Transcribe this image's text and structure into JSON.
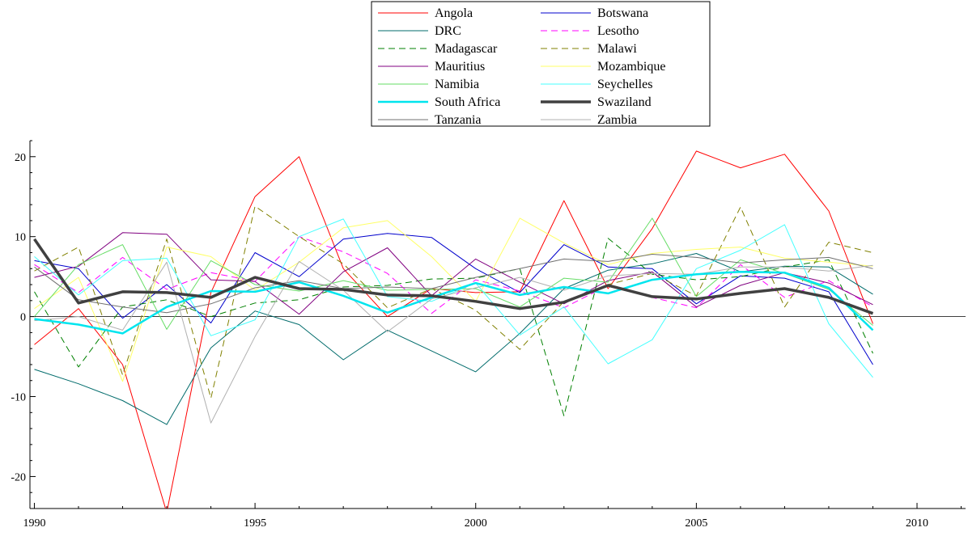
{
  "chart_data": {
    "type": "line",
    "x": [
      1990,
      1991,
      1992,
      1993,
      1994,
      1995,
      1996,
      1997,
      1998,
      1999,
      2000,
      2001,
      2002,
      2003,
      2004,
      2005,
      2006,
      2007,
      2008,
      2009
    ],
    "xlim": [
      1989.9,
      2011.1
    ],
    "ylim": [
      -24,
      22
    ],
    "xticks": [
      1990,
      1995,
      2000,
      2005,
      2010
    ],
    "yticks": [
      -20,
      -10,
      0,
      10,
      20
    ],
    "zero_line": true,
    "grid": false,
    "legend_position": "top-center",
    "legend_columns": 2,
    "series": [
      {
        "name": "Angola",
        "color": "#ff0000",
        "width": 1,
        "dash": "",
        "values": [
          -3.5,
          1.0,
          -6.0,
          -24.5,
          3.0,
          15.0,
          20.0,
          6.0,
          0.0,
          3.5,
          3.0,
          3.1,
          14.5,
          3.5,
          11.0,
          20.7,
          18.6,
          20.3,
          13.2,
          -0.9
        ]
      },
      {
        "name": "Botswana",
        "color": "#0000cc",
        "width": 1,
        "dash": "",
        "values": [
          7.0,
          6.0,
          -0.2,
          4.0,
          -0.8,
          8.0,
          5.0,
          9.7,
          10.4,
          9.9,
          6.0,
          3.0,
          9.0,
          6.2,
          6.0,
          1.6,
          5.1,
          4.8,
          3.1,
          -6.0
        ]
      },
      {
        "name": "DRC",
        "color": "#006b6b",
        "width": 1,
        "dash": "",
        "values": [
          -6.6,
          -8.4,
          -10.5,
          -13.5,
          -3.9,
          0.7,
          -1.0,
          -5.4,
          -1.7,
          -4.3,
          -6.9,
          -2.1,
          3.5,
          5.8,
          6.6,
          7.9,
          5.6,
          6.3,
          6.2,
          2.8
        ]
      },
      {
        "name": "Lesotho",
        "color": "#ff00ff",
        "width": 1,
        "dash": "8 5",
        "values": [
          6.5,
          3.0,
          7.4,
          3.4,
          5.5,
          4.4,
          10.0,
          8.1,
          5.4,
          0.4,
          4.6,
          3.2,
          1.1,
          3.9,
          2.4,
          1.1,
          6.5,
          2.4,
          4.5,
          1.2
        ]
      },
      {
        "name": "Madagascar",
        "color": "#008000",
        "width": 1,
        "dash": "8 5",
        "values": [
          3.1,
          -6.3,
          1.2,
          2.1,
          0.0,
          1.7,
          2.1,
          3.7,
          3.9,
          4.7,
          4.8,
          6.0,
          -12.4,
          9.8,
          5.3,
          4.6,
          5.0,
          6.2,
          7.1,
          -4.6
        ]
      },
      {
        "name": "Malawi",
        "color": "#808000",
        "width": 1,
        "dash": "8 5",
        "values": [
          5.7,
          8.7,
          -7.3,
          9.7,
          -10.2,
          13.8,
          10.0,
          6.6,
          1.1,
          3.5,
          0.8,
          -4.1,
          1.9,
          4.0,
          5.4,
          2.6,
          13.7,
          1.2,
          9.3,
          8.0
        ]
      },
      {
        "name": "Mauritius",
        "color": "#800080",
        "width": 1,
        "dash": "",
        "values": [
          4.9,
          6.3,
          10.5,
          10.3,
          4.6,
          4.4,
          0.3,
          5.6,
          8.6,
          2.6,
          7.2,
          4.3,
          1.6,
          4.5,
          5.6,
          1.2,
          3.9,
          5.5,
          4.2,
          1.5
        ]
      },
      {
        "name": "Mozambique",
        "color": "#ffff66",
        "width": 1,
        "dash": "",
        "values": [
          1.0,
          4.9,
          -8.1,
          8.7,
          7.5,
          3.3,
          6.8,
          11.1,
          12.0,
          7.5,
          1.9,
          12.3,
          9.2,
          6.5,
          7.9,
          8.4,
          8.7,
          7.3,
          6.8,
          6.3
        ]
      },
      {
        "name": "Namibia",
        "color": "#66dd66",
        "width": 1,
        "dash": "",
        "values": [
          0.0,
          6.5,
          9.0,
          -1.6,
          7.0,
          4.0,
          3.2,
          4.5,
          3.3,
          3.4,
          3.5,
          1.2,
          4.8,
          4.3,
          12.3,
          2.5,
          7.1,
          5.4,
          3.4,
          -1.1
        ]
      },
      {
        "name": "Seychelles",
        "color": "#44ffff",
        "width": 1,
        "dash": "",
        "values": [
          7.5,
          2.7,
          7.0,
          7.3,
          -2.4,
          -0.4,
          10.0,
          12.2,
          2.5,
          1.9,
          4.2,
          -2.3,
          1.2,
          -5.9,
          -2.9,
          6.0,
          8.3,
          11.5,
          -0.9,
          -7.6
        ]
      },
      {
        "name": "South Africa",
        "color": "#00e5ee",
        "width": 2.5,
        "dash": "",
        "values": [
          -0.3,
          -1.0,
          -2.1,
          1.2,
          3.2,
          3.1,
          4.3,
          2.6,
          0.5,
          2.4,
          4.2,
          2.7,
          3.7,
          2.9,
          4.6,
          5.3,
          5.6,
          5.5,
          3.6,
          -1.7
        ]
      },
      {
        "name": "Swaziland",
        "color": "#404040",
        "width": 3.5,
        "dash": "",
        "values": [
          9.7,
          1.7,
          3.1,
          3.0,
          2.4,
          4.9,
          3.5,
          3.4,
          2.7,
          2.6,
          1.9,
          1.0,
          1.8,
          3.9,
          2.5,
          2.2,
          2.9,
          3.5,
          2.4,
          0.4
        ]
      },
      {
        "name": "Tanzania",
        "color": "#707070",
        "width": 1,
        "dash": "",
        "values": [
          6.2,
          2.1,
          1.2,
          0.5,
          1.6,
          3.6,
          4.5,
          3.5,
          3.7,
          3.5,
          4.9,
          6.0,
          7.2,
          6.9,
          7.8,
          7.4,
          6.7,
          7.1,
          7.4,
          6.0
        ]
      },
      {
        "name": "Zambia",
        "color": "#b0b0b0",
        "width": 1,
        "dash": "",
        "values": [
          -0.5,
          0.0,
          -1.7,
          6.8,
          -13.3,
          -2.5,
          6.9,
          3.3,
          -1.9,
          2.2,
          3.6,
          4.9,
          3.3,
          5.1,
          5.4,
          5.3,
          6.2,
          6.2,
          5.7,
          6.4
        ]
      }
    ]
  }
}
